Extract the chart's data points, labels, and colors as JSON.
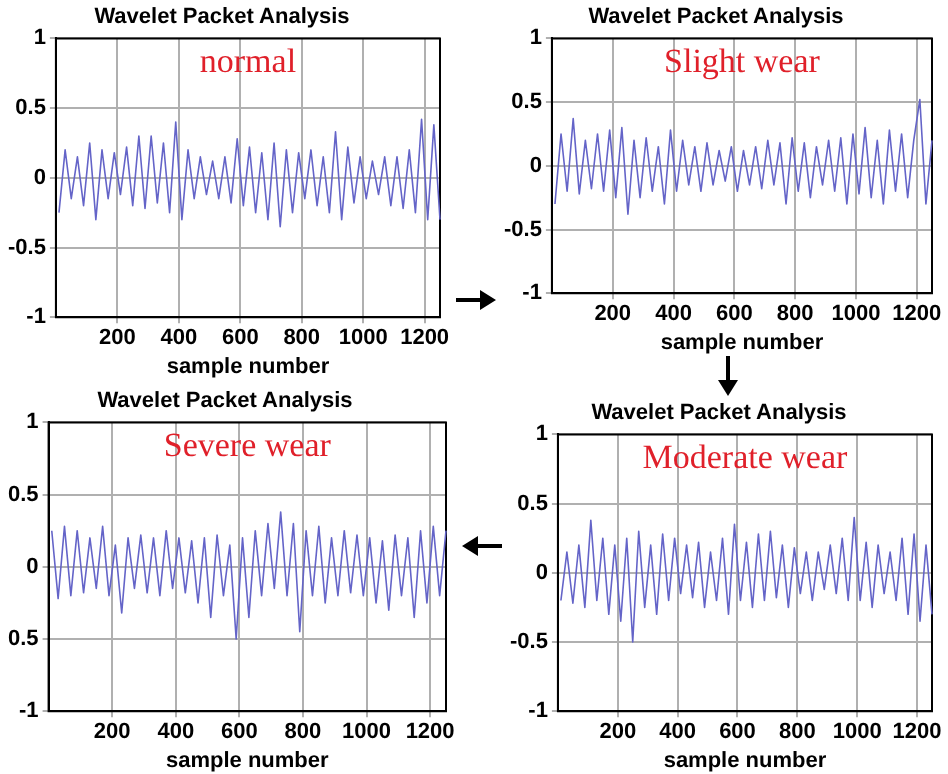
{
  "chart_data": [
    {
      "type": "line",
      "title": "Wavelet Packet Analysis",
      "xlabel": "sample number",
      "annotations": [
        "normal"
      ],
      "xlim": [
        0,
        1250
      ],
      "xticks": [
        200,
        400,
        600,
        800,
        1000,
        1200
      ],
      "ylim": [
        -1,
        1
      ],
      "yticks": [
        -1,
        -0.5,
        0,
        0.5,
        1
      ],
      "grid": true,
      "marker": "none",
      "x": [
        10,
        30,
        50,
        70,
        90,
        110,
        130,
        150,
        170,
        190,
        210,
        230,
        250,
        270,
        290,
        310,
        330,
        350,
        370,
        390,
        410,
        430,
        450,
        470,
        490,
        510,
        530,
        550,
        570,
        590,
        610,
        630,
        650,
        670,
        690,
        710,
        730,
        750,
        770,
        790,
        810,
        830,
        850,
        870,
        890,
        910,
        930,
        950,
        970,
        990,
        1010,
        1030,
        1050,
        1070,
        1090,
        1110,
        1130,
        1150,
        1170,
        1190,
        1210,
        1230,
        1250
      ],
      "series": [
        {
          "color": "#6464c8",
          "values": [
            -0.25,
            0.2,
            -0.15,
            0.15,
            -0.2,
            0.25,
            -0.3,
            0.2,
            -0.15,
            0.18,
            -0.12,
            0.22,
            -0.2,
            0.3,
            -0.22,
            0.3,
            -0.18,
            0.25,
            -0.25,
            0.4,
            -0.3,
            0.2,
            -0.15,
            0.15,
            -0.12,
            0.12,
            -0.15,
            0.15,
            -0.18,
            0.28,
            -0.2,
            0.22,
            -0.25,
            0.18,
            -0.3,
            0.25,
            -0.35,
            0.2,
            -0.25,
            0.18,
            -0.15,
            0.2,
            -0.2,
            0.15,
            -0.25,
            0.33,
            -0.3,
            0.22,
            -0.18,
            0.15,
            -0.15,
            0.12,
            -0.12,
            0.15,
            -0.2,
            0.15,
            -0.22,
            0.2,
            -0.25,
            0.42,
            -0.3,
            0.38,
            -0.3
          ]
        }
      ]
    },
    {
      "type": "line",
      "title": "Wavelet Packet Analysis",
      "xlabel": "sample number",
      "annotations": [
        "Slight wear"
      ],
      "xlim": [
        0,
        1250
      ],
      "xticks": [
        200,
        400,
        600,
        800,
        1000,
        1200
      ],
      "ylim": [
        -1,
        1
      ],
      "yticks": [
        -1,
        -0.5,
        0,
        0.5,
        1
      ],
      "grid": true,
      "marker": "none",
      "x": [
        10,
        30,
        50,
        70,
        90,
        110,
        130,
        150,
        170,
        190,
        210,
        230,
        250,
        270,
        290,
        310,
        330,
        350,
        370,
        390,
        410,
        430,
        450,
        470,
        490,
        510,
        530,
        550,
        570,
        590,
        610,
        630,
        650,
        670,
        690,
        710,
        730,
        750,
        770,
        790,
        810,
        830,
        850,
        870,
        890,
        910,
        930,
        950,
        970,
        990,
        1010,
        1030,
        1050,
        1070,
        1090,
        1110,
        1130,
        1150,
        1170,
        1190,
        1210,
        1230,
        1250
      ],
      "series": [
        {
          "color": "#6464c8",
          "values": [
            -0.3,
            0.25,
            -0.2,
            0.37,
            -0.22,
            0.2,
            -0.18,
            0.25,
            -0.2,
            0.28,
            -0.25,
            0.3,
            -0.38,
            0.2,
            -0.25,
            0.22,
            -0.2,
            0.15,
            -0.3,
            0.28,
            -0.2,
            0.2,
            -0.15,
            0.15,
            -0.2,
            0.18,
            -0.15,
            0.12,
            -0.12,
            0.15,
            -0.2,
            0.12,
            -0.15,
            0.15,
            -0.18,
            0.2,
            -0.15,
            0.18,
            -0.3,
            0.22,
            -0.2,
            0.18,
            -0.25,
            0.15,
            -0.15,
            0.2,
            -0.2,
            0.22,
            -0.3,
            0.25,
            -0.22,
            0.3,
            -0.25,
            0.2,
            -0.3,
            0.28,
            -0.2,
            0.25,
            -0.25,
            0.2,
            0.52,
            -0.3,
            0.2
          ]
        }
      ]
    },
    {
      "type": "line",
      "title": "Wavelet Packet Analysis",
      "xlabel": "sample number",
      "annotations": [
        "Severe wear"
      ],
      "xlim": [
        0,
        1250
      ],
      "xticks": [
        200,
        400,
        600,
        800,
        1000,
        1200
      ],
      "ylim": [
        -1,
        1
      ],
      "yticks": [
        -1,
        {
          "value": -0.5,
          "label": "0.5"
        },
        0,
        0.5,
        1
      ],
      "grid": true,
      "marker": "none",
      "x": [
        10,
        30,
        50,
        70,
        90,
        110,
        130,
        150,
        170,
        190,
        210,
        230,
        250,
        270,
        290,
        310,
        330,
        350,
        370,
        390,
        410,
        430,
        450,
        470,
        490,
        510,
        530,
        550,
        570,
        590,
        610,
        630,
        650,
        670,
        690,
        710,
        730,
        750,
        770,
        790,
        810,
        830,
        850,
        870,
        890,
        910,
        930,
        950,
        970,
        990,
        1010,
        1030,
        1050,
        1070,
        1090,
        1110,
        1130,
        1150,
        1170,
        1190,
        1210,
        1230,
        1250
      ],
      "series": [
        {
          "color": "#6464c8",
          "values": [
            0.25,
            -0.22,
            0.28,
            -0.2,
            0.25,
            -0.18,
            0.2,
            -0.15,
            0.28,
            -0.2,
            0.15,
            -0.32,
            0.2,
            -0.15,
            0.22,
            -0.18,
            0.2,
            -0.2,
            0.25,
            -0.15,
            0.2,
            -0.18,
            0.18,
            -0.25,
            0.2,
            -0.35,
            0.22,
            -0.2,
            0.15,
            -0.5,
            0.2,
            -0.35,
            0.25,
            -0.2,
            0.3,
            -0.15,
            0.38,
            -0.2,
            0.3,
            -0.45,
            0.25,
            -0.2,
            0.28,
            -0.25,
            0.2,
            -0.2,
            0.25,
            -0.18,
            0.22,
            -0.2,
            0.2,
            -0.25,
            0.18,
            -0.3,
            0.22,
            -0.2,
            0.2,
            -0.35,
            0.25,
            -0.25,
            0.28,
            -0.2,
            0.25
          ]
        }
      ]
    },
    {
      "type": "line",
      "title": "Wavelet Packet Analysis",
      "xlabel": "sample number",
      "annotations": [
        "Moderate wear"
      ],
      "xlim": [
        0,
        1250
      ],
      "xticks": [
        200,
        400,
        600,
        800,
        1000,
        1200
      ],
      "ylim": [
        -1,
        1
      ],
      "yticks": [
        -1,
        -0.5,
        0,
        0.5,
        1
      ],
      "grid": true,
      "marker": "none",
      "x": [
        10,
        30,
        50,
        70,
        90,
        110,
        130,
        150,
        170,
        190,
        210,
        230,
        250,
        270,
        290,
        310,
        330,
        350,
        370,
        390,
        410,
        430,
        450,
        470,
        490,
        510,
        530,
        550,
        570,
        590,
        610,
        630,
        650,
        670,
        690,
        710,
        730,
        750,
        770,
        790,
        810,
        830,
        850,
        870,
        890,
        910,
        930,
        950,
        970,
        990,
        1010,
        1030,
        1050,
        1070,
        1090,
        1110,
        1130,
        1150,
        1170,
        1190,
        1210,
        1230,
        1250
      ],
      "series": [
        {
          "color": "#6464c8",
          "values": [
            -0.2,
            0.15,
            -0.22,
            0.2,
            -0.25,
            0.38,
            -0.2,
            0.25,
            -0.3,
            0.2,
            -0.35,
            0.25,
            -0.5,
            0.3,
            -0.25,
            0.2,
            -0.3,
            0.28,
            -0.2,
            0.25,
            -0.15,
            0.2,
            -0.18,
            0.22,
            -0.25,
            0.15,
            -0.2,
            0.25,
            -0.3,
            0.35,
            -0.2,
            0.22,
            -0.25,
            0.28,
            -0.2,
            0.3,
            -0.18,
            0.2,
            -0.25,
            0.18,
            -0.15,
            0.15,
            -0.2,
            0.15,
            -0.12,
            0.2,
            -0.15,
            0.25,
            -0.2,
            0.4,
            -0.2,
            0.22,
            -0.25,
            0.2,
            -0.15,
            0.15,
            -0.2,
            0.25,
            -0.3,
            0.28,
            -0.35,
            0.2,
            -0.3
          ]
        }
      ]
    }
  ]
}
